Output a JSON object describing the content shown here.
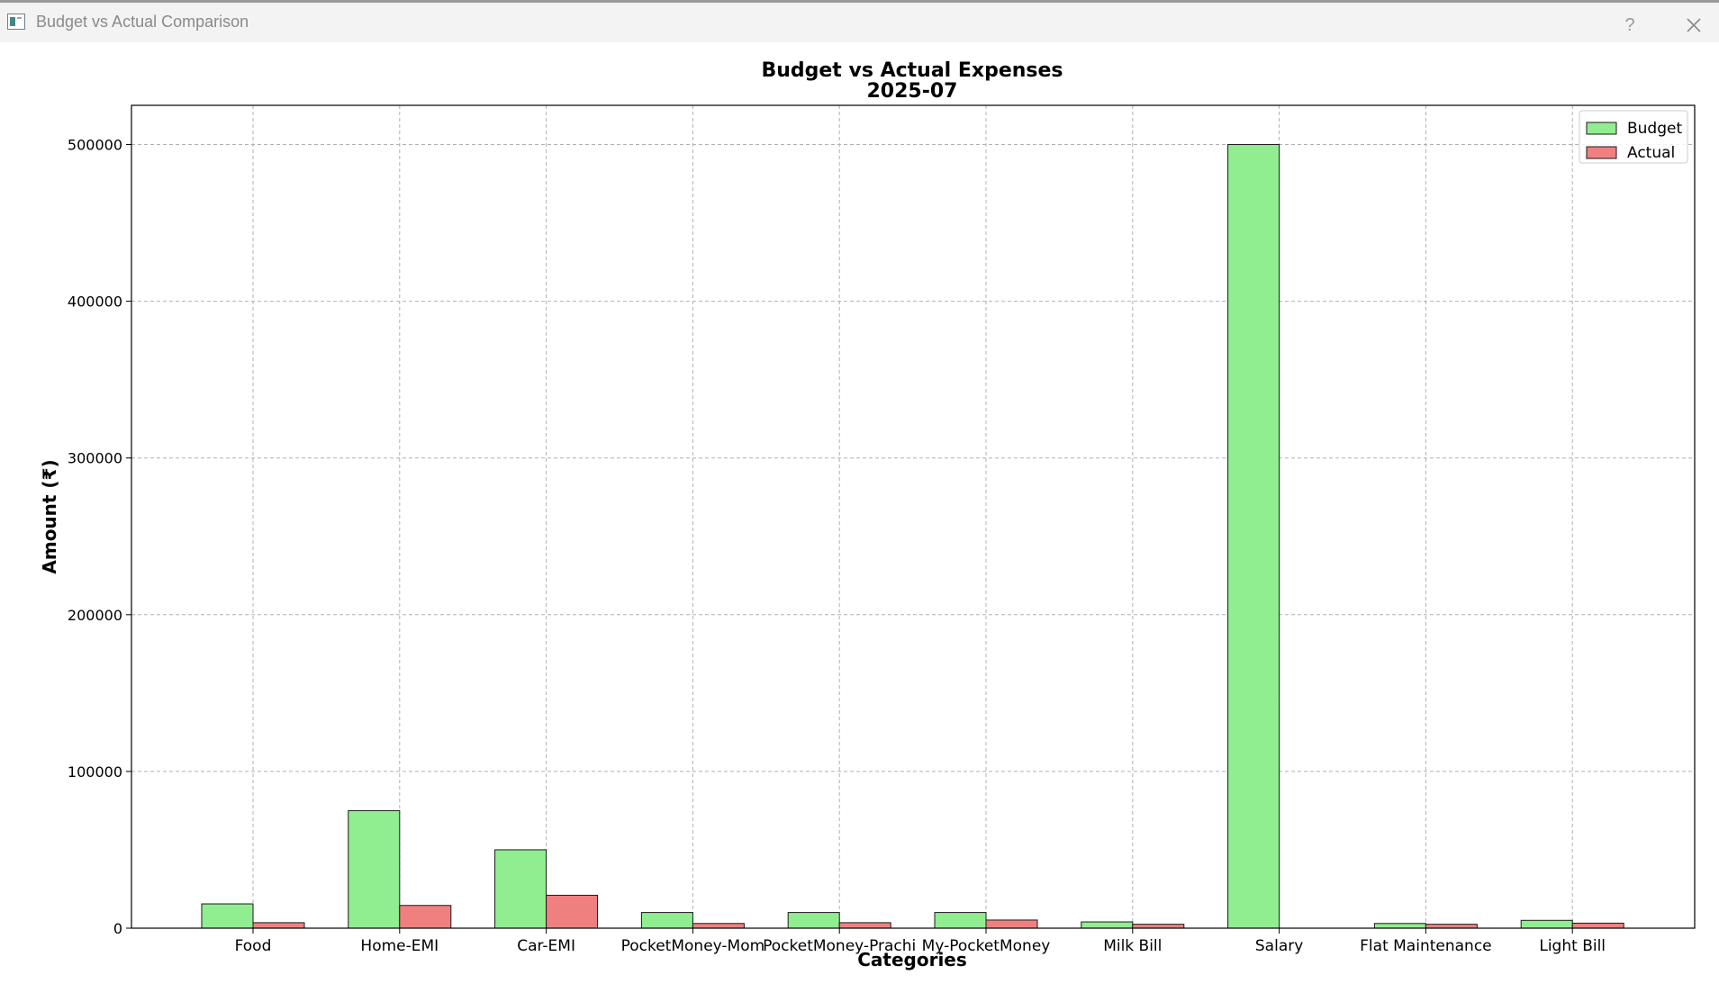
{
  "window": {
    "title": "Budget vs Actual Comparison",
    "help_label": "?"
  },
  "colors": {
    "budget": "#90ee90",
    "actual": "#f08080",
    "edge": "#1a1a1a",
    "grid": "#b0b0b0"
  },
  "chart_data": {
    "type": "bar",
    "title": "Budget vs Actual Expenses",
    "subtitle": "2025-07",
    "xlabel": "Categories",
    "ylabel": "Amount (₹)",
    "categories": [
      "Food",
      "Home-EMI",
      "Car-EMI",
      "PocketMoney-Mom",
      "PocketMoney-Prachi",
      "My-PocketMoney",
      "Milk Bill",
      "Salary",
      "Flat Maintenance",
      "Light Bill"
    ],
    "series": [
      {
        "name": "Budget",
        "color": "#90ee90",
        "values": [
          15500,
          75000,
          50000,
          10000,
          10000,
          10000,
          4000,
          500000,
          3000,
          5000
        ]
      },
      {
        "name": "Actual",
        "color": "#f08080",
        "values": [
          3500,
          14500,
          21000,
          3000,
          3500,
          5200,
          2500,
          0,
          2500,
          3200
        ]
      }
    ],
    "ylim": [
      0,
      525000
    ],
    "yticks": [
      0,
      100000,
      200000,
      300000,
      400000,
      500000
    ],
    "ytick_labels": [
      "0",
      "100000",
      "200000",
      "300000",
      "400000",
      "500000"
    ],
    "grid": true,
    "legend_position": "top-right"
  }
}
